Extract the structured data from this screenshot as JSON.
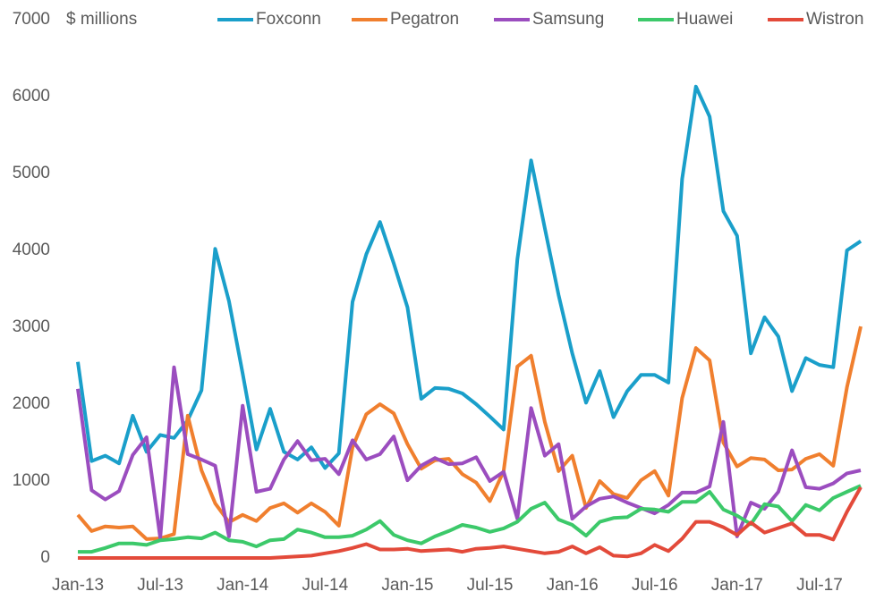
{
  "chart_data": {
    "type": "line",
    "y_label": "$ millions",
    "categories": [
      "Jan-13",
      null,
      null,
      null,
      null,
      null,
      "Jul-13",
      null,
      null,
      null,
      null,
      null,
      "Jan-14",
      null,
      null,
      null,
      null,
      null,
      "Jul-14",
      null,
      null,
      null,
      null,
      null,
      "Jan-15",
      null,
      null,
      null,
      null,
      null,
      "Jul-15",
      null,
      null,
      null,
      null,
      null,
      "Jan-16",
      null,
      null,
      null,
      null,
      null,
      "Jul-16",
      null,
      null,
      null,
      null,
      null,
      "Jan-17",
      null,
      null,
      null,
      null,
      null,
      "Jul-17",
      null,
      null,
      null
    ],
    "ylim": [
      0,
      7000
    ],
    "yticks": [
      0,
      1000,
      2000,
      3000,
      4000,
      5000,
      6000,
      7000
    ],
    "grid": false,
    "legend": "top",
    "series": [
      {
        "name": "Foxconn",
        "color": "#1a9fca",
        "values": [
          2550,
          1260,
          1330,
          1230,
          1850,
          1380,
          1600,
          1560,
          1790,
          2180,
          4020,
          3340,
          2400,
          1410,
          1940,
          1380,
          1280,
          1440,
          1170,
          1360,
          3330,
          3950,
          4370,
          3830,
          3260,
          2070,
          2210,
          2200,
          2140,
          2000,
          1840,
          1670,
          3880,
          5170,
          4290,
          3420,
          2660,
          2020,
          2430,
          1830,
          2170,
          2380,
          2380,
          2280,
          4930,
          6130,
          5740,
          4510,
          4190,
          2660,
          3130,
          2880,
          2170,
          2600,
          2510,
          2480,
          4000,
          4120
        ]
      },
      {
        "name": "Pegatron",
        "color": "#f07f2e",
        "values": [
          560,
          350,
          410,
          395,
          410,
          245,
          255,
          310,
          1850,
          1140,
          710,
          465,
          560,
          480,
          650,
          710,
          590,
          710,
          600,
          420,
          1440,
          1870,
          2000,
          1880,
          1480,
          1160,
          1270,
          1290,
          1090,
          980,
          740,
          1130,
          2490,
          2630,
          1770,
          1130,
          1330,
          650,
          1000,
          830,
          780,
          1010,
          1130,
          810,
          2080,
          2730,
          2570,
          1500,
          1190,
          1300,
          1280,
          1140,
          1150,
          1290,
          1350,
          1200,
          2220,
          3010
        ]
      },
      {
        "name": "Samsung",
        "color": "#9b4dbf",
        "values": [
          2200,
          880,
          760,
          870,
          1340,
          1570,
          260,
          2480,
          1350,
          1280,
          1200,
          280,
          1980,
          860,
          900,
          1280,
          1520,
          1270,
          1290,
          1090,
          1530,
          1280,
          1350,
          1580,
          1010,
          1200,
          1300,
          1220,
          1230,
          1310,
          1000,
          1120,
          510,
          1950,
          1330,
          1480,
          510,
          670,
          770,
          800,
          720,
          650,
          580,
          690,
          850,
          850,
          930,
          1770,
          280,
          720,
          640,
          860,
          1400,
          920,
          900,
          970,
          1100,
          1140
        ]
      },
      {
        "name": "Huawei",
        "color": "#3cc96a",
        "values": [
          80,
          80,
          130,
          190,
          190,
          170,
          230,
          245,
          270,
          255,
          330,
          230,
          210,
          150,
          230,
          245,
          370,
          330,
          270,
          270,
          290,
          370,
          480,
          300,
          230,
          190,
          280,
          350,
          430,
          395,
          340,
          385,
          470,
          640,
          720,
          500,
          430,
          290,
          470,
          520,
          530,
          640,
          630,
          600,
          730,
          730,
          860,
          630,
          550,
          440,
          700,
          670,
          480,
          690,
          620,
          780,
          860,
          940
        ]
      },
      {
        "name": "Wistron",
        "color": "#e34a3a",
        "values": [
          0,
          0,
          0,
          0,
          0,
          0,
          0,
          0,
          0,
          0,
          0,
          0,
          0,
          0,
          0,
          10,
          20,
          30,
          60,
          90,
          130,
          180,
          110,
          110,
          120,
          90,
          100,
          110,
          80,
          120,
          130,
          150,
          120,
          90,
          60,
          80,
          150,
          60,
          140,
          30,
          20,
          60,
          170,
          90,
          250,
          470,
          470,
          400,
          300,
          460,
          330,
          390,
          450,
          300,
          300,
          240,
          600,
          920
        ]
      }
    ]
  }
}
